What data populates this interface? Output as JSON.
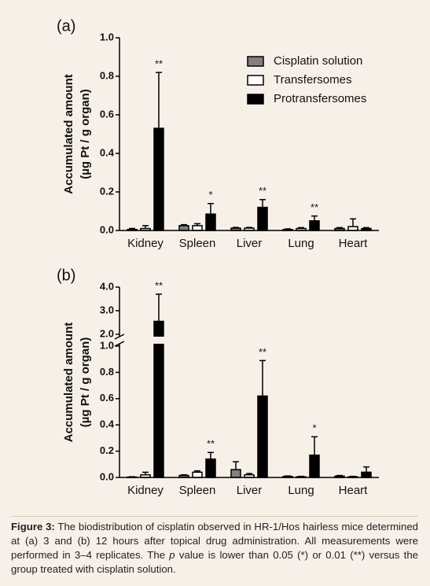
{
  "chart_data": [
    {
      "type": "bar",
      "panel": "(a)",
      "ylabel": [
        "Accumulated amount",
        "(µg Pt / g organ)"
      ],
      "categories": [
        "Kidney",
        "Spleen",
        "Liver",
        "Lung",
        "Heart"
      ],
      "series": [
        {
          "name": "Cisplatin solution",
          "color": "#808080",
          "values": [
            0.005,
            0.025,
            0.012,
            0.005,
            0.01
          ],
          "errors": [
            0.005,
            0.005,
            0.004,
            0.003,
            0.005
          ]
        },
        {
          "name": "Transfersomes",
          "color": "#ffffff",
          "values": [
            0.01,
            0.025,
            0.012,
            0.01,
            0.02
          ],
          "errors": [
            0.015,
            0.01,
            0.004,
            0.005,
            0.04
          ]
        },
        {
          "name": "Protransfersomes",
          "color": "#000000",
          "values": [
            0.53,
            0.085,
            0.12,
            0.05,
            0.01
          ],
          "errors": [
            0.29,
            0.055,
            0.04,
            0.025,
            0.005
          ]
        }
      ],
      "significance": [
        "**",
        "*",
        "**",
        "**",
        null
      ],
      "ylim": [
        0,
        1
      ],
      "yticks": [
        {
          "value": 0,
          "label": "0.0"
        },
        0.2,
        0.4,
        0.6,
        0.8,
        {
          "value": 1,
          "label": "1.0"
        }
      ],
      "legend": "upper right"
    },
    {
      "type": "bar",
      "panel": "(b)",
      "ylabel": [
        "Accumulated amount",
        "(µg Pt / g organ)"
      ],
      "categories": [
        "Kidney",
        "Spleen",
        "Liver",
        "Lung",
        "Heart"
      ],
      "series": [
        {
          "color": "#808080",
          "values": [
            0.003,
            0.015,
            0.06,
            0.008,
            0.01
          ],
          "errors": [
            0.002,
            0.005,
            0.06,
            0.003,
            0.005
          ]
        },
        {
          "color": "#ffffff",
          "values": [
            0.02,
            0.04,
            0.02,
            0.005,
            0.005
          ],
          "errors": [
            0.02,
            0.01,
            0.01,
            0.003,
            0.003
          ]
        },
        {
          "color": "#000000",
          "values": [
            2.55,
            0.14,
            0.62,
            0.17,
            0.04
          ],
          "errors": [
            1.15,
            0.05,
            0.27,
            0.14,
            0.04
          ]
        }
      ],
      "significance": [
        "**",
        "**",
        "**",
        "*",
        null
      ],
      "ylim": [
        0,
        4
      ],
      "axis_break": [
        1,
        2
      ],
      "yticks": [
        {
          "value": 0,
          "label": "0.0"
        },
        0.2,
        0.4,
        0.6,
        0.8,
        {
          "value": 1,
          "label": "1.0"
        },
        {
          "value": 2,
          "label": "2.0"
        },
        {
          "value": 3,
          "label": "3.0"
        },
        {
          "value": 4,
          "label": "4.0"
        }
      ]
    }
  ],
  "caption": {
    "label": "Figure 3:",
    "before": "The biodistribution of cisplatin observed in HR-1/Hos hairless mice determined at (a) 3 and (b) 12 hours after topical drug administration. All measurements were performed in 3–4 replicates. The ",
    "italic": "p",
    "after": " value is lower than 0.05 (*) or 0.01 (**) versus the group treated with cisplatin solution."
  }
}
